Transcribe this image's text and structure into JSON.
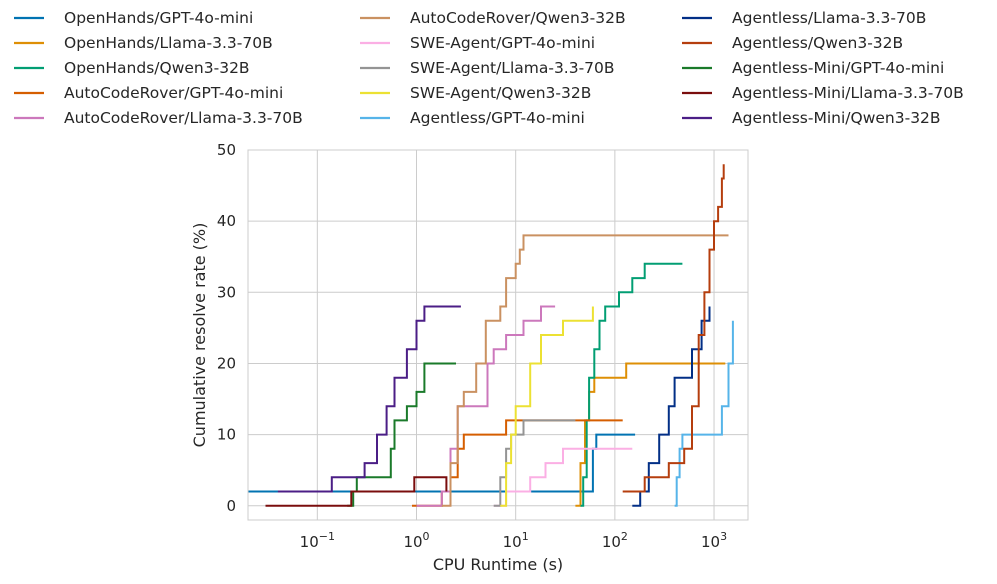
{
  "chart_data": {
    "type": "line",
    "title": "",
    "xlabel": "CPU Runtime (s)",
    "ylabel": "Cumulative resolve rate (%)",
    "xscale": "log",
    "xlim": [
      0.02,
      2200
    ],
    "ylim": [
      -2,
      50
    ],
    "grid": true,
    "legend_position": "top",
    "x_ticks": [
      {
        "value": 0.1,
        "base": "10",
        "exp": "−1"
      },
      {
        "value": 1,
        "base": "10",
        "exp": "0"
      },
      {
        "value": 10,
        "base": "10",
        "exp": "1"
      },
      {
        "value": 100,
        "base": "10",
        "exp": "2"
      },
      {
        "value": 1000,
        "base": "10",
        "exp": "3"
      }
    ],
    "y_ticks": [
      0,
      10,
      20,
      30,
      40,
      50
    ],
    "series": [
      {
        "name": "OpenHands/GPT-4o-mini",
        "color": "#0173b2",
        "points": [
          [
            0.02,
            2
          ],
          [
            55,
            2
          ],
          [
            60,
            8
          ],
          [
            65,
            10
          ],
          [
            160,
            10
          ]
        ]
      },
      {
        "name": "OpenHands/Llama-3.3-70B",
        "color": "#de8f05",
        "points": [
          [
            40,
            0
          ],
          [
            45,
            6
          ],
          [
            50,
            12
          ],
          [
            55,
            16
          ],
          [
            62,
            18
          ],
          [
            120,
            18
          ],
          [
            130,
            20
          ],
          [
            1300,
            20
          ]
        ]
      },
      {
        "name": "OpenHands/Qwen3-32B",
        "color": "#029e73",
        "points": [
          [
            45,
            0
          ],
          [
            48,
            4
          ],
          [
            52,
            12
          ],
          [
            55,
            18
          ],
          [
            62,
            22
          ],
          [
            70,
            26
          ],
          [
            80,
            28
          ],
          [
            100,
            28
          ],
          [
            110,
            30
          ],
          [
            150,
            32
          ],
          [
            200,
            34
          ],
          [
            480,
            34
          ]
        ]
      },
      {
        "name": "AutoCodeRover/GPT-4o-mini",
        "color": "#d55e00",
        "points": [
          [
            0.9,
            0
          ],
          [
            1.8,
            2
          ],
          [
            2.2,
            4
          ],
          [
            2.6,
            8
          ],
          [
            3,
            10
          ],
          [
            6,
            10
          ],
          [
            8,
            12
          ],
          [
            120,
            12
          ]
        ]
      },
      {
        "name": "AutoCodeRover/Llama-3.3-70B",
        "color": "#cc78bc",
        "points": [
          [
            1,
            0
          ],
          [
            1.8,
            2
          ],
          [
            2.2,
            8
          ],
          [
            2.6,
            14
          ],
          [
            5,
            14
          ],
          [
            5.2,
            20
          ],
          [
            6,
            22
          ],
          [
            8,
            24
          ],
          [
            12,
            26
          ],
          [
            18,
            28
          ],
          [
            25,
            28
          ]
        ]
      },
      {
        "name": "AutoCodeRover/Qwen3-32B",
        "color": "#ca9161",
        "points": [
          [
            1.8,
            0
          ],
          [
            2.2,
            6
          ],
          [
            2.6,
            14
          ],
          [
            3,
            16
          ],
          [
            4,
            20
          ],
          [
            5,
            26
          ],
          [
            7,
            28
          ],
          [
            8,
            32
          ],
          [
            10,
            34
          ],
          [
            11,
            36
          ],
          [
            12,
            38
          ],
          [
            1400,
            38
          ]
        ]
      },
      {
        "name": "SWE-Agent/GPT-4o-mini",
        "color": "#fbafe4",
        "points": [
          [
            6,
            0
          ],
          [
            8,
            2
          ],
          [
            14,
            4
          ],
          [
            20,
            6
          ],
          [
            30,
            8
          ],
          [
            150,
            8
          ]
        ]
      },
      {
        "name": "SWE-Agent/Llama-3.3-70B",
        "color": "#949494",
        "points": [
          [
            6,
            0
          ],
          [
            7,
            4
          ],
          [
            8,
            8
          ],
          [
            9,
            10
          ],
          [
            12,
            12
          ],
          [
            40,
            12
          ]
        ]
      },
      {
        "name": "SWE-Agent/Qwen3-32B",
        "color": "#ece133",
        "points": [
          [
            7,
            0
          ],
          [
            8,
            6
          ],
          [
            9,
            10
          ],
          [
            10,
            14
          ],
          [
            14,
            20
          ],
          [
            18,
            24
          ],
          [
            30,
            26
          ],
          [
            60,
            28
          ]
        ]
      },
      {
        "name": "Agentless/GPT-4o-mini",
        "color": "#56b4e9",
        "points": [
          [
            400,
            0
          ],
          [
            420,
            4
          ],
          [
            450,
            8
          ],
          [
            480,
            10
          ],
          [
            1000,
            10
          ],
          [
            1200,
            14
          ],
          [
            1400,
            20
          ],
          [
            1550,
            26
          ]
        ]
      },
      {
        "name": "Agentless/Llama-3.3-70B",
        "color": "#022f86",
        "points": [
          [
            150,
            0
          ],
          [
            180,
            2
          ],
          [
            220,
            6
          ],
          [
            280,
            10
          ],
          [
            350,
            14
          ],
          [
            400,
            18
          ],
          [
            550,
            18
          ],
          [
            600,
            22
          ],
          [
            750,
            26
          ],
          [
            900,
            28
          ]
        ]
      },
      {
        "name": "Agentless/Qwen3-32B",
        "color": "#b53e0e",
        "points": [
          [
            120,
            2
          ],
          [
            200,
            4
          ],
          [
            350,
            6
          ],
          [
            500,
            8
          ],
          [
            600,
            14
          ],
          [
            700,
            24
          ],
          [
            800,
            30
          ],
          [
            900,
            36
          ],
          [
            1000,
            40
          ],
          [
            1100,
            42
          ],
          [
            1200,
            46
          ],
          [
            1250,
            48
          ]
        ]
      },
      {
        "name": "Agentless-Mini/GPT-4o-mini",
        "color": "#1a7a2a",
        "points": [
          [
            0.2,
            0
          ],
          [
            0.23,
            2
          ],
          [
            0.25,
            4
          ],
          [
            0.5,
            4
          ],
          [
            0.55,
            8
          ],
          [
            0.6,
            12
          ],
          [
            0.8,
            14
          ],
          [
            1,
            16
          ],
          [
            1.2,
            20
          ],
          [
            2.5,
            20
          ]
        ]
      },
      {
        "name": "Agentless-Mini/Llama-3.3-70B",
        "color": "#7a0d0d",
        "points": [
          [
            0.03,
            0
          ],
          [
            0.2,
            0
          ],
          [
            0.22,
            2
          ],
          [
            0.9,
            2
          ],
          [
            0.95,
            4
          ],
          [
            1.8,
            4
          ],
          [
            2,
            2
          ]
        ]
      },
      {
        "name": "Agentless-Mini/Qwen3-32B",
        "color": "#4b1e86",
        "points": [
          [
            0.04,
            2
          ],
          [
            0.12,
            2
          ],
          [
            0.14,
            4
          ],
          [
            0.25,
            4
          ],
          [
            0.3,
            6
          ],
          [
            0.4,
            10
          ],
          [
            0.5,
            14
          ],
          [
            0.6,
            18
          ],
          [
            0.8,
            22
          ],
          [
            1,
            26
          ],
          [
            1.2,
            28
          ],
          [
            2.8,
            28
          ]
        ]
      }
    ]
  }
}
